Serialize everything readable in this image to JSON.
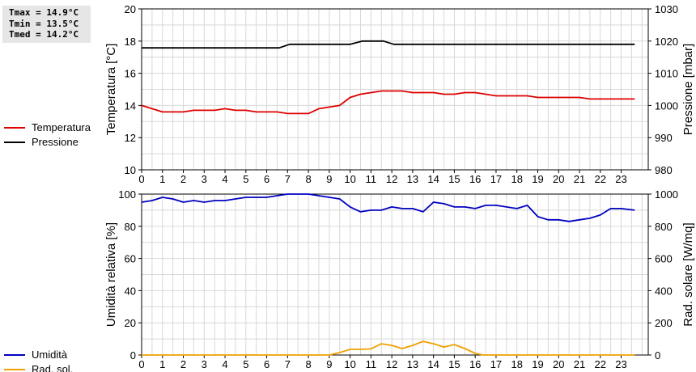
{
  "stats": {
    "tmax": "Tmax = 14.9°C",
    "tmin": "Tmin = 13.5°C",
    "tmed": "Tmed = 14.2°C"
  },
  "chart_data": [
    {
      "type": "line",
      "xlabel": "",
      "x_ticks": [
        0,
        1,
        2,
        3,
        4,
        5,
        6,
        7,
        8,
        9,
        10,
        11,
        12,
        13,
        14,
        15,
        16,
        17,
        18,
        19,
        20,
        21,
        22,
        23
      ],
      "xlim": [
        0,
        24.3
      ],
      "ylabel": "Temperatura [°C]",
      "ylim": [
        10,
        20
      ],
      "y_ticks": [
        10,
        12,
        14,
        16,
        18,
        20
      ],
      "y2label": "Pressione [mbar]",
      "y2lim": [
        980,
        1030
      ],
      "y2_ticks": [
        980,
        990,
        1000,
        1010,
        1020,
        1030
      ],
      "grid": true,
      "legend_position": "left",
      "series": [
        {
          "name": "Temperatura",
          "axis": "left",
          "color": "#dd0000",
          "x": [
            0,
            0.5,
            1,
            1.5,
            2,
            2.5,
            3,
            3.5,
            4,
            4.5,
            5,
            5.5,
            6,
            6.5,
            7,
            7.5,
            8,
            8.5,
            9,
            9.5,
            10,
            10.5,
            11,
            11.5,
            12,
            12.5,
            13,
            13.5,
            14,
            14.5,
            15,
            15.5,
            16,
            16.5,
            17,
            17.5,
            18,
            18.5,
            19,
            19.5,
            20,
            20.5,
            21,
            21.5,
            22,
            22.5,
            23,
            23.65
          ],
          "values": [
            14.0,
            13.8,
            13.6,
            13.6,
            13.6,
            13.7,
            13.7,
            13.7,
            13.8,
            13.7,
            13.7,
            13.6,
            13.6,
            13.6,
            13.5,
            13.5,
            13.5,
            13.8,
            13.9,
            14.0,
            14.5,
            14.7,
            14.8,
            14.9,
            14.9,
            14.9,
            14.8,
            14.8,
            14.8,
            14.7,
            14.7,
            14.8,
            14.8,
            14.7,
            14.6,
            14.6,
            14.6,
            14.6,
            14.5,
            14.5,
            14.5,
            14.5,
            14.5,
            14.4,
            14.4,
            14.4,
            14.4,
            14.4
          ]
        },
        {
          "name": "Pressione",
          "axis": "right",
          "color": "#000000",
          "x": [
            0,
            6.6,
            7.1,
            10,
            10.6,
            11.6,
            12.1,
            23.65
          ],
          "values": [
            1017.9,
            1017.9,
            1019.0,
            1019.0,
            1020.0,
            1020.0,
            1019.0,
            1019.0
          ]
        }
      ]
    },
    {
      "type": "line",
      "xlabel": "",
      "x_ticks": [
        0,
        1,
        2,
        3,
        4,
        5,
        6,
        7,
        8,
        9,
        10,
        11,
        12,
        13,
        14,
        15,
        16,
        17,
        18,
        19,
        20,
        21,
        22,
        23
      ],
      "xlim": [
        0,
        24.3
      ],
      "ylabel": "Umidità relativa [%]",
      "ylim": [
        0,
        100
      ],
      "y_ticks": [
        0,
        20,
        40,
        60,
        80,
        100
      ],
      "y2label": "Rad. solare [W/mq]",
      "y2lim": [
        0,
        1000
      ],
      "y2_ticks": [
        0,
        200,
        400,
        600,
        800,
        1000
      ],
      "grid": true,
      "legend_position": "left",
      "series": [
        {
          "name": "Umidità",
          "axis": "left",
          "color": "#0000c0",
          "x": [
            0,
            0.5,
            1,
            1.5,
            2,
            2.5,
            3,
            3.5,
            4,
            4.5,
            5,
            5.5,
            6,
            6.5,
            7,
            7.5,
            8,
            8.5,
            9,
            9.5,
            10,
            10.5,
            11,
            11.5,
            12,
            12.5,
            13,
            13.5,
            14,
            14.5,
            15,
            15.5,
            16,
            16.5,
            17,
            17.5,
            18,
            18.5,
            19,
            19.5,
            20,
            20.5,
            21,
            21.5,
            22,
            22.5,
            23,
            23.65
          ],
          "values": [
            95,
            96,
            98,
            97,
            95,
            96,
            95,
            96,
            96,
            97,
            98,
            98,
            98,
            99,
            100,
            100,
            100,
            99,
            98,
            97,
            92,
            89,
            90,
            90,
            92,
            91,
            91,
            89,
            95,
            94,
            92,
            92,
            91,
            93,
            93,
            92,
            91,
            93,
            86,
            84,
            84,
            83,
            84,
            85,
            87,
            91,
            91,
            90
          ]
        },
        {
          "name": "Rad. sol.",
          "axis": "right",
          "color": "#f0a000",
          "x": [
            0,
            9,
            9.5,
            10,
            10.5,
            11,
            11.5,
            12,
            12.5,
            13,
            13.5,
            14,
            14.5,
            15,
            15.5,
            16,
            16.4,
            23.65
          ],
          "values": [
            0,
            0,
            15,
            35,
            35,
            38,
            70,
            60,
            40,
            60,
            85,
            70,
            50,
            65,
            40,
            10,
            0,
            0
          ]
        }
      ]
    }
  ]
}
